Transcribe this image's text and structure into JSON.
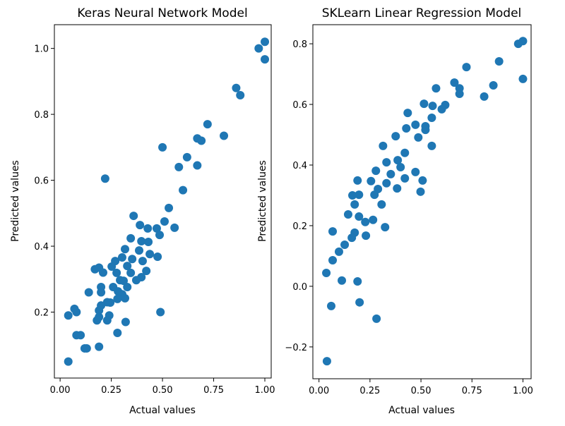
{
  "chart_data": [
    {
      "type": "scatter",
      "title": "Keras Neural Network Model",
      "xlabel": "Actual values",
      "ylabel": "Predicted values",
      "xlim": [
        -0.028,
        1.031
      ],
      "ylim": [
        0.0,
        1.072
      ],
      "xticks": [
        "0.00",
        "0.25",
        "0.50",
        "0.75",
        "1.00"
      ],
      "yticks": [
        "0.2",
        "0.4",
        "0.6",
        "0.8",
        "1.0"
      ],
      "grid": false,
      "color": "#1f77b4",
      "points": [
        [
          1.0,
          1.02
        ],
        [
          0.97,
          1.0
        ],
        [
          1.0,
          0.967
        ],
        [
          0.86,
          0.88
        ],
        [
          0.88,
          0.858
        ],
        [
          0.72,
          0.77
        ],
        [
          0.8,
          0.735
        ],
        [
          0.67,
          0.727
        ],
        [
          0.69,
          0.72
        ],
        [
          0.5,
          0.7
        ],
        [
          0.62,
          0.67
        ],
        [
          0.22,
          0.605
        ],
        [
          0.58,
          0.64
        ],
        [
          0.67,
          0.645
        ],
        [
          0.6,
          0.57
        ],
        [
          0.531,
          0.516
        ],
        [
          0.359,
          0.492
        ],
        [
          0.39,
          0.464
        ],
        [
          0.51,
          0.475
        ],
        [
          0.559,
          0.456
        ],
        [
          0.428,
          0.454
        ],
        [
          0.472,
          0.454
        ],
        [
          0.486,
          0.434
        ],
        [
          0.345,
          0.424
        ],
        [
          0.397,
          0.415
        ],
        [
          0.431,
          0.413
        ],
        [
          0.317,
          0.391
        ],
        [
          0.386,
          0.387
        ],
        [
          0.438,
          0.376
        ],
        [
          0.476,
          0.368
        ],
        [
          0.303,
          0.366
        ],
        [
          0.352,
          0.361
        ],
        [
          0.403,
          0.355
        ],
        [
          0.269,
          0.355
        ],
        [
          0.252,
          0.338
        ],
        [
          0.328,
          0.34
        ],
        [
          0.421,
          0.325
        ],
        [
          0.276,
          0.319
        ],
        [
          0.345,
          0.319
        ],
        [
          0.397,
          0.306
        ],
        [
          0.372,
          0.297
        ],
        [
          0.293,
          0.297
        ],
        [
          0.259,
          0.276
        ],
        [
          0.328,
          0.276
        ],
        [
          0.283,
          0.263
        ],
        [
          0.303,
          0.254
        ],
        [
          0.317,
          0.242
        ],
        [
          0.245,
          0.229
        ],
        [
          0.2,
          0.276
        ],
        [
          0.49,
          0.2
        ],
        [
          0.08,
          0.2
        ],
        [
          0.04,
          0.19
        ],
        [
          0.07,
          0.21
        ],
        [
          0.17,
          0.33
        ],
        [
          0.19,
          0.335
        ],
        [
          0.21,
          0.32
        ],
        [
          0.2,
          0.26
        ],
        [
          0.14,
          0.26
        ],
        [
          0.28,
          0.24
        ],
        [
          0.31,
          0.295
        ],
        [
          0.23,
          0.23
        ],
        [
          0.2,
          0.22
        ],
        [
          0.24,
          0.19
        ],
        [
          0.19,
          0.185
        ],
        [
          0.19,
          0.205
        ],
        [
          0.32,
          0.17
        ],
        [
          0.28,
          0.137
        ],
        [
          0.08,
          0.13
        ],
        [
          0.1,
          0.13
        ],
        [
          0.12,
          0.09
        ],
        [
          0.13,
          0.09
        ],
        [
          0.19,
          0.095
        ],
        [
          0.04,
          0.05
        ],
        [
          0.18,
          0.175
        ],
        [
          0.23,
          0.175
        ]
      ]
    },
    {
      "type": "scatter",
      "title": "SKLearn Linear Regression Model",
      "xlabel": "Actual values",
      "ylabel": "Predicted values",
      "xlim": [
        -0.03,
        1.04
      ],
      "ylim": [
        -0.305,
        0.863
      ],
      "xticks": [
        "0.00",
        "0.25",
        "0.50",
        "0.75",
        "1.00"
      ],
      "yticks": [
        "−0.2",
        "0.0",
        "0.2",
        "0.4",
        "0.6",
        "0.8"
      ],
      "grid": false,
      "color": "#1f77b4",
      "points": [
        [
          1.0,
          0.809
        ],
        [
          0.977,
          0.8
        ],
        [
          1.0,
          0.684
        ],
        [
          0.883,
          0.742
        ],
        [
          0.855,
          0.663
        ],
        [
          0.723,
          0.723
        ],
        [
          0.81,
          0.626
        ],
        [
          0.689,
          0.653
        ],
        [
          0.664,
          0.672
        ],
        [
          0.574,
          0.653
        ],
        [
          0.619,
          0.598
        ],
        [
          0.602,
          0.584
        ],
        [
          0.515,
          0.602
        ],
        [
          0.557,
          0.595
        ],
        [
          0.689,
          0.635
        ],
        [
          0.522,
          0.528
        ],
        [
          0.435,
          0.572
        ],
        [
          0.473,
          0.533
        ],
        [
          0.553,
          0.556
        ],
        [
          0.522,
          0.516
        ],
        [
          0.487,
          0.491
        ],
        [
          0.553,
          0.463
        ],
        [
          0.428,
          0.521
        ],
        [
          0.376,
          0.495
        ],
        [
          0.314,
          0.463
        ],
        [
          0.421,
          0.44
        ],
        [
          0.386,
          0.416
        ],
        [
          0.331,
          0.409
        ],
        [
          0.4,
          0.393
        ],
        [
          0.279,
          0.381
        ],
        [
          0.352,
          0.37
        ],
        [
          0.473,
          0.377
        ],
        [
          0.508,
          0.349
        ],
        [
          0.498,
          0.312
        ],
        [
          0.421,
          0.356
        ],
        [
          0.383,
          0.323
        ],
        [
          0.331,
          0.34
        ],
        [
          0.255,
          0.347
        ],
        [
          0.189,
          0.349
        ],
        [
          0.289,
          0.321
        ],
        [
          0.272,
          0.302
        ],
        [
          0.196,
          0.302
        ],
        [
          0.164,
          0.3
        ],
        [
          0.175,
          0.27
        ],
        [
          0.307,
          0.27
        ],
        [
          0.143,
          0.237
        ],
        [
          0.196,
          0.23
        ],
        [
          0.265,
          0.219
        ],
        [
          0.227,
          0.212
        ],
        [
          0.324,
          0.195
        ],
        [
          0.067,
          0.181
        ],
        [
          0.175,
          0.177
        ],
        [
          0.23,
          0.167
        ],
        [
          0.161,
          0.16
        ],
        [
          0.126,
          0.137
        ],
        [
          0.098,
          0.114
        ],
        [
          0.067,
          0.086
        ],
        [
          0.036,
          0.044
        ],
        [
          0.112,
          0.019
        ],
        [
          0.189,
          0.016
        ],
        [
          0.06,
          -0.065
        ],
        [
          0.199,
          -0.053
        ],
        [
          0.282,
          -0.107
        ],
        [
          0.039,
          -0.247
        ]
      ]
    }
  ]
}
